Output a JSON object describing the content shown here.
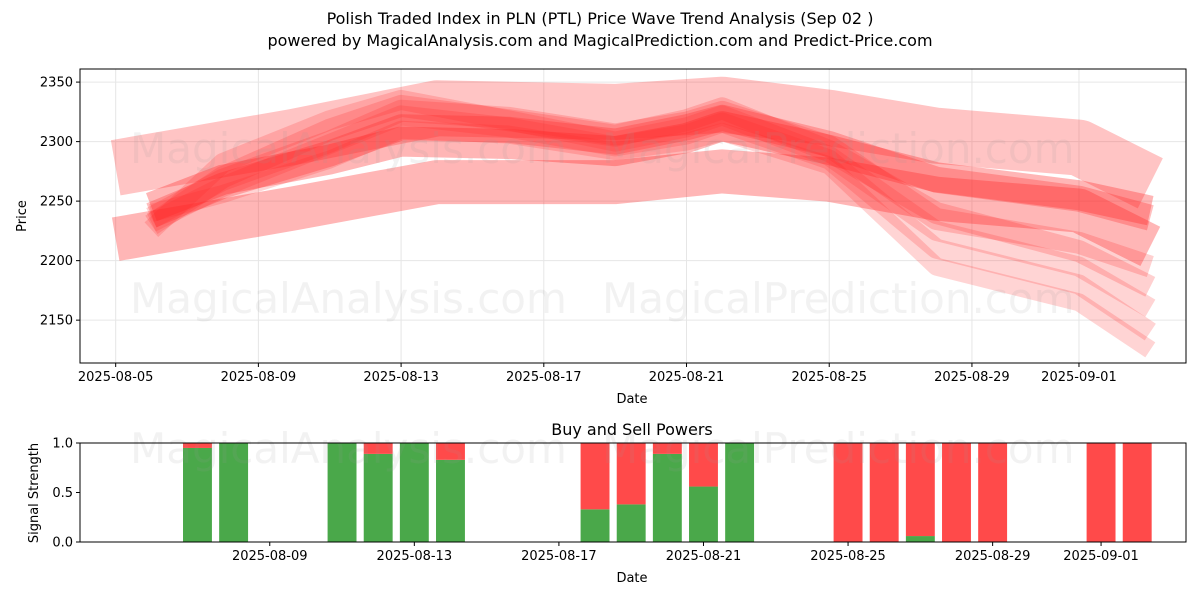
{
  "title": {
    "line1": "Polish Traded Index in PLN (PTL) Price Wave Trend Analysis (Sep 02 )",
    "line2": "powered by MagicalAnalysis.com and MagicalPrediction.com and Predict-Price.com"
  },
  "watermarks": [
    "MagicalAnalysis.com",
    "MagicalPrediction.com"
  ],
  "colors": {
    "band": "#ff2a2a",
    "buy": "#4aa84a",
    "sell": "#ff4a4a",
    "grid": "#e6e6e6"
  },
  "chart_data": [
    {
      "type": "area",
      "title": "",
      "xlabel": "Date",
      "ylabel": "Price",
      "ylim": [
        2114,
        2361
      ],
      "xlim": [
        "2025-08-04",
        "2025-09-04"
      ],
      "x_ticks": [
        "2025-08-05",
        "2025-08-09",
        "2025-08-13",
        "2025-08-17",
        "2025-08-21",
        "2025-08-25",
        "2025-08-29",
        "2025-09-01"
      ],
      "y_ticks": [
        2150,
        2200,
        2250,
        2300,
        2350
      ],
      "grid": true,
      "series": [
        {
          "x": [
            "2025-08-05",
            "2025-08-10",
            "2025-08-14",
            "2025-08-19",
            "2025-08-22",
            "2025-08-25",
            "2025-08-28",
            "2025-09-01",
            "2025-09-03"
          ],
          "y": [
            2278,
            2304,
            2328,
            2325,
            2331,
            2320,
            2305,
            2295,
            2265
          ],
          "width": 56,
          "opacity": 0.28
        },
        {
          "x": [
            "2025-08-05",
            "2025-08-10",
            "2025-08-14",
            "2025-08-19",
            "2025-08-22",
            "2025-08-25",
            "2025-08-28",
            "2025-09-01",
            "2025-09-03"
          ],
          "y": [
            2218,
            2244,
            2266,
            2266,
            2275,
            2268,
            2252,
            2242,
            2212
          ],
          "width": 44,
          "opacity": 0.34
        },
        {
          "x": [
            "2025-08-06",
            "2025-08-08",
            "2025-08-11",
            "2025-08-13",
            "2025-08-16",
            "2025-08-19",
            "2025-08-21",
            "2025-08-22",
            "2025-08-25",
            "2025-08-28",
            "2025-09-01",
            "2025-09-03"
          ],
          "y": [
            2245,
            2268,
            2285,
            2300,
            2298,
            2292,
            2303,
            2313,
            2293,
            2270,
            2255,
            2242
          ],
          "width": 30,
          "opacity": 0.34
        },
        {
          "x": [
            "2025-08-06",
            "2025-08-08",
            "2025-08-11",
            "2025-08-13",
            "2025-08-16",
            "2025-08-19",
            "2025-08-21",
            "2025-08-22",
            "2025-08-25",
            "2025-08-28",
            "2025-09-01",
            "2025-09-03"
          ],
          "y": [
            2238,
            2263,
            2290,
            2312,
            2310,
            2300,
            2312,
            2320,
            2298,
            2268,
            2252,
            2236
          ],
          "width": 26,
          "opacity": 0.3
        },
        {
          "x": [
            "2025-08-06",
            "2025-08-08",
            "2025-08-11",
            "2025-08-13",
            "2025-08-16",
            "2025-08-19",
            "2025-08-21",
            "2025-08-22",
            "2025-08-25",
            "2025-08-28",
            "2025-09-01",
            "2025-09-03"
          ],
          "y": [
            2230,
            2270,
            2310,
            2330,
            2318,
            2305,
            2318,
            2328,
            2292,
            2240,
            2208,
            2178
          ],
          "width": 22,
          "opacity": 0.22
        },
        {
          "x": [
            "2025-08-06",
            "2025-08-08",
            "2025-08-11",
            "2025-08-13",
            "2025-08-16",
            "2025-08-19",
            "2025-08-21",
            "2025-08-22",
            "2025-08-25",
            "2025-08-28",
            "2025-09-01",
            "2025-09-03"
          ],
          "y": [
            2226,
            2282,
            2318,
            2335,
            2318,
            2300,
            2312,
            2322,
            2288,
            2225,
            2195,
            2160
          ],
          "width": 20,
          "opacity": 0.2
        },
        {
          "x": [
            "2025-08-06",
            "2025-08-08",
            "2025-08-11",
            "2025-08-13",
            "2025-08-16",
            "2025-08-19",
            "2025-08-21",
            "2025-08-22",
            "2025-08-25",
            "2025-08-28",
            "2025-09-01",
            "2025-09-03"
          ],
          "y": [
            2232,
            2262,
            2298,
            2322,
            2312,
            2296,
            2306,
            2316,
            2285,
            2210,
            2180,
            2140
          ],
          "width": 20,
          "opacity": 0.2
        },
        {
          "x": [
            "2025-08-06",
            "2025-08-08",
            "2025-08-11",
            "2025-08-13",
            "2025-08-16",
            "2025-08-19",
            "2025-08-21",
            "2025-08-22",
            "2025-08-25",
            "2025-08-28",
            "2025-09-01",
            "2025-09-03"
          ],
          "y": [
            2240,
            2256,
            2285,
            2310,
            2306,
            2292,
            2300,
            2308,
            2280,
            2195,
            2165,
            2125
          ],
          "width": 18,
          "opacity": 0.2
        },
        {
          "x": [
            "2025-08-06",
            "2025-08-08",
            "2025-08-11",
            "2025-08-13",
            "2025-08-16",
            "2025-08-19",
            "2025-08-21",
            "2025-08-22",
            "2025-08-25",
            "2025-08-28",
            "2025-09-01",
            "2025-09-03"
          ],
          "y": [
            2236,
            2268,
            2300,
            2326,
            2320,
            2306,
            2316,
            2325,
            2296,
            2235,
            2215,
            2195
          ],
          "width": 22,
          "opacity": 0.22
        }
      ]
    },
    {
      "type": "bar",
      "title": "Buy and Sell Powers",
      "xlabel": "Date",
      "ylabel": "Signal Strength",
      "ylim": [
        0,
        1
      ],
      "y_ticks": [
        "0.0",
        "0.5",
        "1.0"
      ],
      "x_ticks": [
        "2025-08-09",
        "2025-08-13",
        "2025-08-17",
        "2025-08-21",
        "2025-08-25",
        "2025-08-29",
        "2025-09-01"
      ],
      "categories": [
        "2025-08-07",
        "2025-08-08",
        "2025-08-11",
        "2025-08-12",
        "2025-08-13",
        "2025-08-14",
        "2025-08-18",
        "2025-08-19",
        "2025-08-20",
        "2025-08-21",
        "2025-08-22",
        "2025-08-25",
        "2025-08-26",
        "2025-08-27",
        "2025-08-28",
        "2025-08-29",
        "2025-09-01",
        "2025-09-02"
      ],
      "series": [
        {
          "name": "Buy",
          "values": [
            0.95,
            1.0,
            1.0,
            0.89,
            1.0,
            0.83,
            0.33,
            0.38,
            0.89,
            0.56,
            1.0,
            0.0,
            0.0,
            0.06,
            0.0,
            0.0,
            0.0,
            0.0
          ]
        },
        {
          "name": "Sell",
          "values": [
            0.05,
            0.0,
            0.0,
            0.11,
            0.0,
            0.17,
            0.67,
            0.62,
            0.11,
            0.44,
            0.0,
            1.0,
            1.0,
            0.94,
            1.0,
            1.0,
            1.0,
            1.0
          ]
        }
      ]
    }
  ]
}
